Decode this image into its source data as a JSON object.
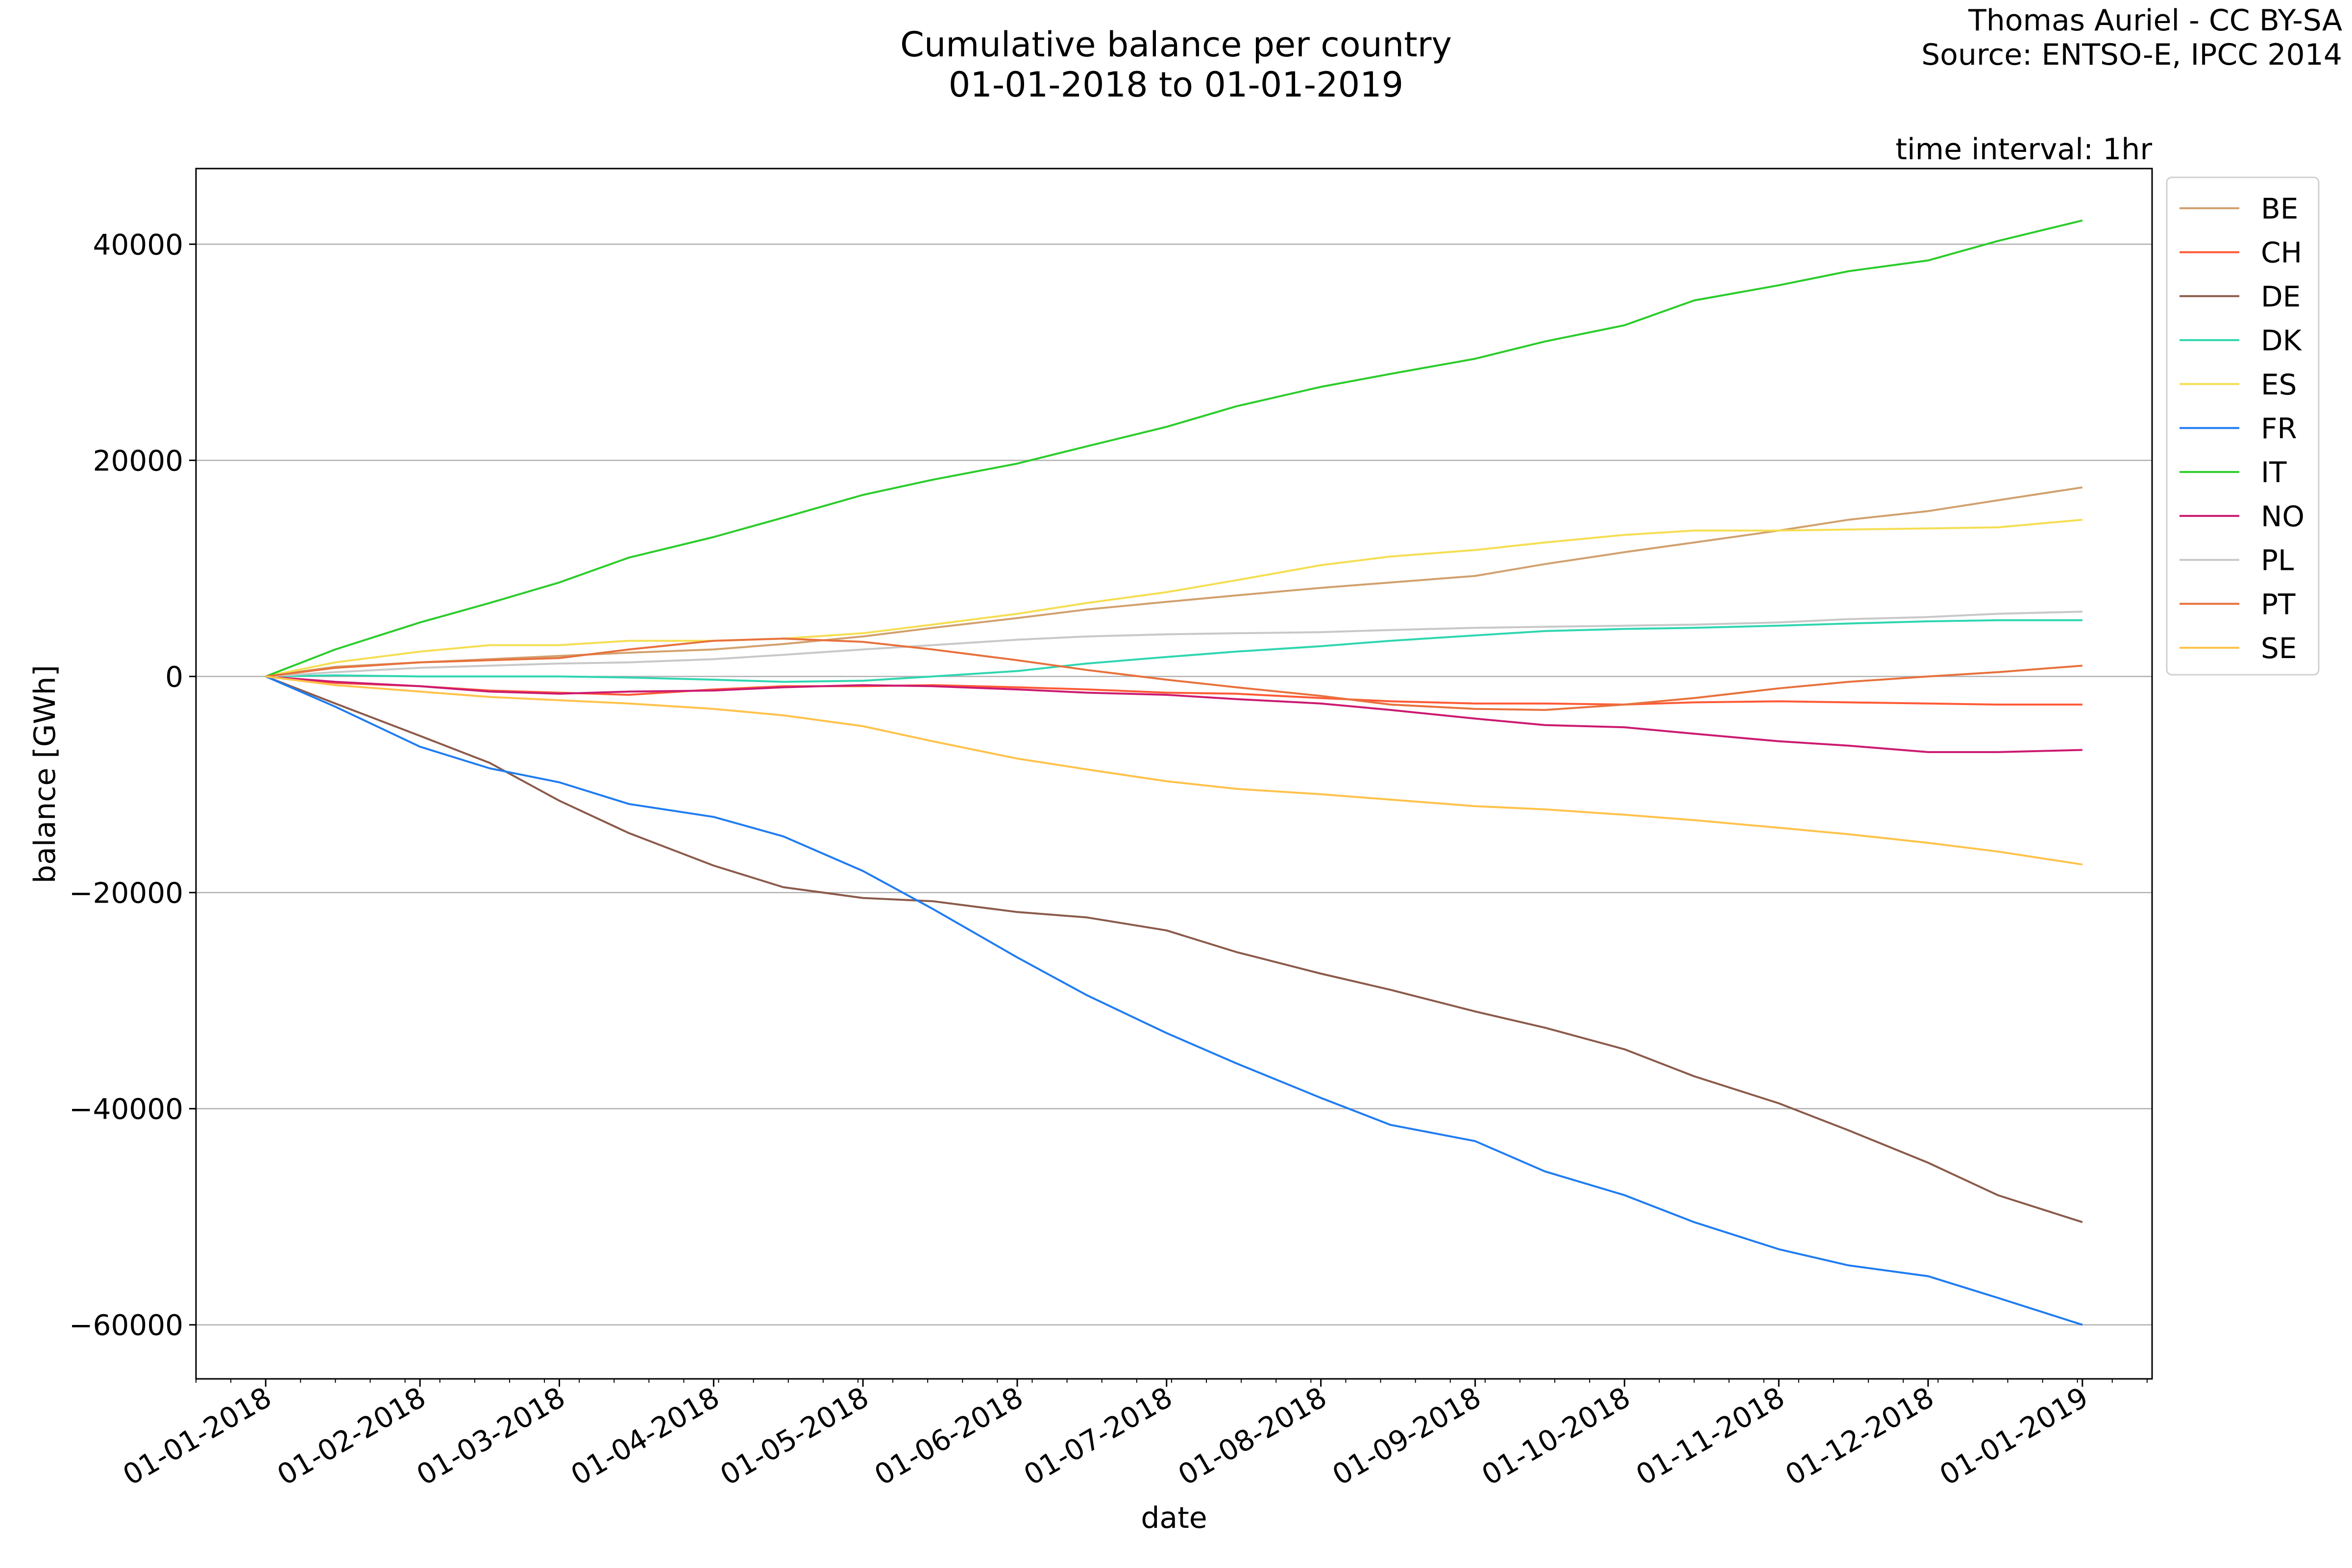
{
  "credits": {
    "author": "Thomas Auriel - CC BY-SA",
    "source": "Source: ENTSO-E, IPCC 2014"
  },
  "chart_data": {
    "type": "line",
    "title": "Cumulative balance per country",
    "subtitle": "01-01-2018 to 01-01-2019",
    "annotation": "time interval: 1hr",
    "xlabel": "date",
    "ylabel": "balance [GWh]",
    "x_type": "date",
    "xlim": [
      "2017-12-18",
      "2019-01-15"
    ],
    "ylim": [
      -65000,
      47000
    ],
    "xticks": [
      "2018-01-01",
      "2018-02-01",
      "2018-03-01",
      "2018-04-01",
      "2018-05-01",
      "2018-06-01",
      "2018-07-01",
      "2018-08-01",
      "2018-09-01",
      "2018-10-01",
      "2018-11-01",
      "2018-12-01",
      "2019-01-01"
    ],
    "xtick_labels": [
      "01-01-2018",
      "01-02-2018",
      "01-03-2018",
      "01-04-2018",
      "01-05-2018",
      "01-06-2018",
      "01-07-2018",
      "01-08-2018",
      "01-09-2018",
      "01-10-2018",
      "01-11-2018",
      "01-12-2018",
      "01-01-2019"
    ],
    "yticks": [
      -60000,
      -40000,
      -20000,
      0,
      20000,
      40000
    ],
    "ytick_labels": [
      "−60000",
      "−40000",
      "−20000",
      "0",
      "20000",
      "40000"
    ],
    "grid": "horizontal",
    "legend_position": "right, outside plot",
    "x": [
      "2018-01-01",
      "2018-01-15",
      "2018-02-01",
      "2018-02-15",
      "2018-03-01",
      "2018-03-15",
      "2018-04-01",
      "2018-04-15",
      "2018-05-01",
      "2018-05-15",
      "2018-06-01",
      "2018-06-15",
      "2018-07-01",
      "2018-07-15",
      "2018-08-01",
      "2018-08-15",
      "2018-09-01",
      "2018-09-15",
      "2018-10-01",
      "2018-10-15",
      "2018-11-01",
      "2018-11-15",
      "2018-12-01",
      "2018-12-15",
      "2019-01-01"
    ],
    "series": [
      {
        "name": "BE",
        "color": "#d2a06e",
        "values": [
          0,
          900,
          1300,
          1600,
          1900,
          2200,
          2500,
          3000,
          3700,
          4500,
          5400,
          6200,
          6900,
          7500,
          8200,
          8700,
          9300,
          10400,
          11500,
          12400,
          13500,
          14500,
          15300,
          16300,
          17500
        ]
      },
      {
        "name": "CH",
        "color": "#ff5a36",
        "values": [
          0,
          -600,
          -900,
          -1300,
          -1500,
          -1700,
          -1200,
          -900,
          -900,
          -800,
          -1000,
          -1200,
          -1500,
          -1600,
          -2000,
          -2300,
          -2500,
          -2500,
          -2600,
          -2400,
          -2300,
          -2400,
          -2500,
          -2600,
          -2600
        ]
      },
      {
        "name": "DE",
        "color": "#8b5a4a",
        "values": [
          0,
          -2500,
          -5500,
          -8000,
          -11500,
          -14500,
          -17500,
          -19500,
          -20500,
          -20800,
          -21800,
          -22300,
          -23500,
          -25500,
          -27500,
          -29000,
          -31000,
          -32500,
          -34500,
          -37000,
          -39500,
          -42000,
          -45000,
          -48000,
          -50500
        ]
      },
      {
        "name": "DK",
        "color": "#2fd6b0",
        "values": [
          0,
          100,
          0,
          0,
          0,
          -100,
          -300,
          -500,
          -400,
          0,
          500,
          1200,
          1800,
          2300,
          2800,
          3300,
          3800,
          4200,
          4400,
          4500,
          4700,
          4900,
          5100,
          5200,
          5200
        ]
      },
      {
        "name": "ES",
        "color": "#f5de52",
        "values": [
          0,
          1300,
          2300,
          2900,
          2900,
          3300,
          3300,
          3500,
          4000,
          4800,
          5800,
          6800,
          7800,
          8900,
          10300,
          11100,
          11700,
          12400,
          13100,
          13500,
          13500,
          13600,
          13700,
          13800,
          14500
        ]
      },
      {
        "name": "FR",
        "color": "#1f7cf2",
        "values": [
          0,
          -2800,
          -6500,
          -8500,
          -9800,
          -11800,
          -13000,
          -14800,
          -18000,
          -21500,
          -26000,
          -29500,
          -33000,
          -35800,
          -39000,
          -41500,
          -43000,
          -45800,
          -48000,
          -50500,
          -53000,
          -54500,
          -55500,
          -57500,
          -60000
        ]
      },
      {
        "name": "IT",
        "color": "#2bcc2b",
        "values": [
          0,
          2500,
          5000,
          6800,
          8700,
          11000,
          12900,
          14700,
          16800,
          18200,
          19700,
          21300,
          23100,
          25000,
          26800,
          28000,
          29400,
          31000,
          32500,
          34800,
          36200,
          37500,
          38500,
          40300,
          42200
        ]
      },
      {
        "name": "NO",
        "color": "#cc1a70",
        "values": [
          0,
          -500,
          -900,
          -1400,
          -1600,
          -1400,
          -1300,
          -1000,
          -800,
          -900,
          -1200,
          -1500,
          -1700,
          -2100,
          -2500,
          -3100,
          -3900,
          -4500,
          -4700,
          -5300,
          -6000,
          -6400,
          -7000,
          -7000,
          -6800
        ]
      },
      {
        "name": "PL",
        "color": "#c8c8c8",
        "values": [
          0,
          400,
          800,
          1000,
          1200,
          1300,
          1600,
          2000,
          2500,
          2900,
          3400,
          3700,
          3900,
          4000,
          4100,
          4300,
          4500,
          4600,
          4700,
          4800,
          5000,
          5300,
          5500,
          5800,
          6000
        ]
      },
      {
        "name": "PT",
        "color": "#e8713c",
        "values": [
          0,
          800,
          1300,
          1500,
          1700,
          2500,
          3300,
          3500,
          3200,
          2500,
          1500,
          600,
          -300,
          -1000,
          -1800,
          -2600,
          -3000,
          -3100,
          -2600,
          -2000,
          -1100,
          -500,
          0,
          400,
          1000
        ]
      },
      {
        "name": "SE",
        "color": "#ffc24a",
        "values": [
          0,
          -800,
          -1400,
          -1900,
          -2200,
          -2500,
          -3000,
          -3600,
          -4600,
          -6000,
          -7600,
          -8600,
          -9700,
          -10400,
          -10900,
          -11400,
          -12000,
          -12300,
          -12800,
          -13300,
          -14000,
          -14600,
          -15400,
          -16200,
          -17400
        ]
      }
    ]
  }
}
